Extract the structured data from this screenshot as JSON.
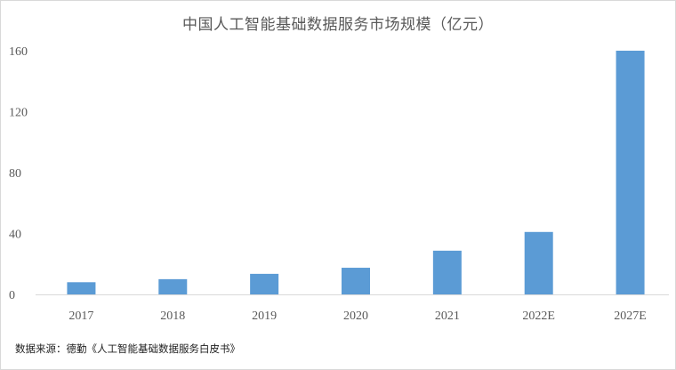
{
  "chart_data": {
    "type": "bar",
    "title": "中国人工智能基础数据服务市场规模（亿元）",
    "categories": [
      "2017",
      "2018",
      "2019",
      "2020",
      "2021",
      "2022E",
      "2027E"
    ],
    "values": [
      8,
      10,
      13.5,
      17.5,
      28.7,
      41,
      160
    ],
    "ylim": [
      0,
      160
    ],
    "yticks": [
      0,
      40,
      80,
      120,
      160
    ],
    "grid": false,
    "legend": "none",
    "bar_color": "#5b9bd5",
    "axis_color": "#d9d9d9"
  },
  "source_note": "数据来源：德勤《人工智能基础数据服务白皮书》"
}
